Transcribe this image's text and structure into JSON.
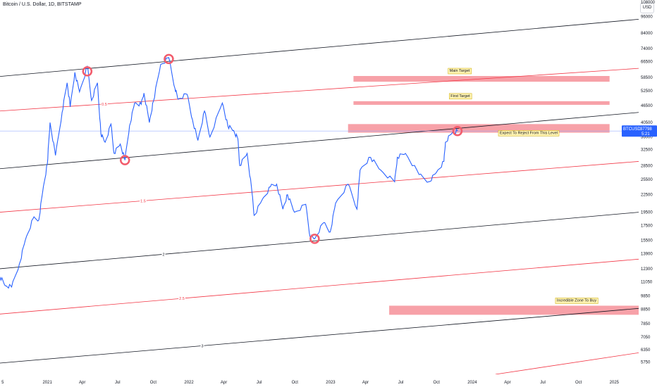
{
  "header": {
    "symbol_title": "Bitcoin / U.S. Dollar, 1D, BITSTAMP",
    "currency_button": "USD"
  },
  "colors": {
    "price_line": "#2962ff",
    "channel_black": "#131722",
    "channel_red": "#f23645",
    "zone_fill": "#f7a1a8",
    "label_fill": "#fff3b0",
    "marker_red": "#f25b6b"
  },
  "chart_data": {
    "type": "line",
    "y_scale": "log",
    "ylim": [
      5200,
      110000
    ],
    "xlim": [
      "2020-09-01",
      "2025-03-05"
    ],
    "y_ticks": [
      "108000",
      "96000",
      "84000",
      "74000",
      "66500",
      "58500",
      "52500",
      "46500",
      "40500",
      "36000",
      "32500",
      "28500",
      "25500",
      "22500",
      "19500",
      "17500",
      "15500",
      "13900",
      "12300",
      "11050",
      "9850",
      "8850",
      "7850",
      "7050",
      "6350",
      "5750"
    ],
    "x_ticks": [
      {
        "label": "5",
        "date": "2020-09-08"
      },
      {
        "label": "2021",
        "date": "2021-01-01"
      },
      {
        "label": "Apr",
        "date": "2021-04-01"
      },
      {
        "label": "Jul",
        "date": "2021-07-01"
      },
      {
        "label": "Oct",
        "date": "2021-10-01"
      },
      {
        "label": "2022",
        "date": "2022-01-01"
      },
      {
        "label": "Apr",
        "date": "2022-04-01"
      },
      {
        "label": "Jul",
        "date": "2022-07-01"
      },
      {
        "label": "Oct",
        "date": "2022-10-01"
      },
      {
        "label": "2023",
        "date": "2023-01-01"
      },
      {
        "label": "Apr",
        "date": "2023-04-01"
      },
      {
        "label": "Jul",
        "date": "2023-07-01"
      },
      {
        "label": "Oct",
        "date": "2023-10-01"
      },
      {
        "label": "2024",
        "date": "2024-01-01"
      },
      {
        "label": "Apr",
        "date": "2024-04-01"
      },
      {
        "label": "Jul",
        "date": "2024-07-01"
      },
      {
        "label": "Oct",
        "date": "2024-10-01"
      },
      {
        "label": "2025",
        "date": "2025-01-01"
      }
    ],
    "series": [
      {
        "points": [
          [
            "2020-09-01",
            11500
          ],
          [
            "2020-09-15",
            10700
          ],
          [
            "2020-10-01",
            10600
          ],
          [
            "2020-10-21",
            12800
          ],
          [
            "2020-11-05",
            15500
          ],
          [
            "2020-11-25",
            18500
          ],
          [
            "2020-12-10",
            18300
          ],
          [
            "2020-12-20",
            23000
          ],
          [
            "2021-01-01",
            29000
          ],
          [
            "2021-01-08",
            40500
          ],
          [
            "2021-01-22",
            31000
          ],
          [
            "2021-02-08",
            44000
          ],
          [
            "2021-02-21",
            56000
          ],
          [
            "2021-03-01",
            46000
          ],
          [
            "2021-03-13",
            61000
          ],
          [
            "2021-03-25",
            52000
          ],
          [
            "2021-04-14",
            64000
          ],
          [
            "2021-04-25",
            48500
          ],
          [
            "2021-05-10",
            56000
          ],
          [
            "2021-05-19",
            37000
          ],
          [
            "2021-05-30",
            34500
          ],
          [
            "2021-06-14",
            40000
          ],
          [
            "2021-06-22",
            31500
          ],
          [
            "2021-07-08",
            34000
          ],
          [
            "2021-07-20",
            29800
          ],
          [
            "2021-08-01",
            39500
          ],
          [
            "2021-08-14",
            47500
          ],
          [
            "2021-08-31",
            47000
          ],
          [
            "2021-09-07",
            51500
          ],
          [
            "2021-09-21",
            40500
          ],
          [
            "2021-10-01",
            48000
          ],
          [
            "2021-10-20",
            65000
          ],
          [
            "2021-11-10",
            68800
          ],
          [
            "2021-11-26",
            53500
          ],
          [
            "2021-12-04",
            49000
          ],
          [
            "2021-12-27",
            51000
          ],
          [
            "2022-01-10",
            41500
          ],
          [
            "2022-01-24",
            35000
          ],
          [
            "2022-02-10",
            44500
          ],
          [
            "2022-02-24",
            36000
          ],
          [
            "2022-03-28",
            47500
          ],
          [
            "2022-04-11",
            39500
          ],
          [
            "2022-04-26",
            38000
          ],
          [
            "2022-05-07",
            35500
          ],
          [
            "2022-05-12",
            28500
          ],
          [
            "2022-05-31",
            31500
          ],
          [
            "2022-06-13",
            22500
          ],
          [
            "2022-06-18",
            19000
          ],
          [
            "2022-07-08",
            21500
          ],
          [
            "2022-07-30",
            24000
          ],
          [
            "2022-08-15",
            24500
          ],
          [
            "2022-08-31",
            20000
          ],
          [
            "2022-09-12",
            22500
          ],
          [
            "2022-09-30",
            19500
          ],
          [
            "2022-10-29",
            20800
          ],
          [
            "2022-11-09",
            16000
          ],
          [
            "2022-11-21",
            15700
          ],
          [
            "2022-12-14",
            17900
          ],
          [
            "2022-12-31",
            16600
          ],
          [
            "2023-01-14",
            21000
          ],
          [
            "2023-02-15",
            24500
          ],
          [
            "2023-03-10",
            20000
          ],
          [
            "2023-03-18",
            27500
          ],
          [
            "2023-04-14",
            30500
          ],
          [
            "2023-05-10",
            27500
          ],
          [
            "2023-06-15",
            25000
          ],
          [
            "2023-06-22",
            30500
          ],
          [
            "2023-07-13",
            31500
          ],
          [
            "2023-08-17",
            26500
          ],
          [
            "2023-09-11",
            25000
          ],
          [
            "2023-10-01",
            27000
          ],
          [
            "2023-10-20",
            29500
          ],
          [
            "2023-10-24",
            34500
          ],
          [
            "2023-11-09",
            37000
          ],
          [
            "2023-11-24",
            37798
          ]
        ]
      }
    ],
    "channel_lines": [
      {
        "label": "",
        "color": "black",
        "from": [
          "2020-09-01",
          59000
        ],
        "to": [
          "2025-03-05",
          94000
        ]
      },
      {
        "label": "0.5",
        "color": "red",
        "from": [
          "2020-09-01",
          44500
        ],
        "to": [
          "2025-03-05",
          63000
        ]
      },
      {
        "label": "",
        "color": "black",
        "from": [
          "2020-09-01",
          27800
        ],
        "to": [
          "2025-03-05",
          44000
        ]
      },
      {
        "label": "1.5",
        "color": "red",
        "from": [
          "2020-09-01",
          19500
        ],
        "to": [
          "2025-03-05",
          29500
        ]
      },
      {
        "label": "2",
        "color": "black",
        "from": [
          "2020-09-01",
          12300
        ],
        "to": [
          "2025-03-05",
          19500
        ]
      },
      {
        "label": "2.5",
        "color": "red",
        "from": [
          "2020-09-01",
          8500
        ],
        "to": [
          "2025-03-05",
          13300
        ]
      },
      {
        "label": "3",
        "color": "black",
        "from": [
          "2020-09-01",
          5700
        ],
        "to": [
          "2025-03-05",
          8900
        ]
      },
      {
        "label": "",
        "color": "red",
        "from": [
          "2024-03-01",
          5200
        ],
        "to": [
          "2025-03-05",
          6200
        ]
      }
    ],
    "zones": [
      {
        "label": "Main Target",
        "from": "2023-03-01",
        "to": "2024-12-20",
        "low": 56500,
        "high": 59200
      },
      {
        "label": "First Target",
        "from": "2023-03-01",
        "to": "2024-12-20",
        "low": 46800,
        "high": 48200
      },
      {
        "label": "Expect To Reject From This Level",
        "from": "2023-02-15",
        "to": "2024-12-20",
        "low": 37300,
        "high": 40000
      },
      {
        "label": "Incredible Zone To Buy",
        "from": "2023-06-01",
        "to": "2025-03-05",
        "low": 8450,
        "high": 9100
      }
    ],
    "markers": [
      {
        "date": "2021-04-14",
        "value": 61500
      },
      {
        "date": "2021-07-20",
        "value": 29800
      },
      {
        "date": "2021-11-10",
        "value": 68000
      },
      {
        "date": "2022-11-21",
        "value": 15700
      },
      {
        "date": "2023-11-24",
        "value": 37798
      }
    ],
    "current_price": {
      "value": 37798,
      "symbol": "BTCUSD",
      "price_label": "37798",
      "countdown": "5:21"
    },
    "grid": false,
    "legend": "none"
  }
}
